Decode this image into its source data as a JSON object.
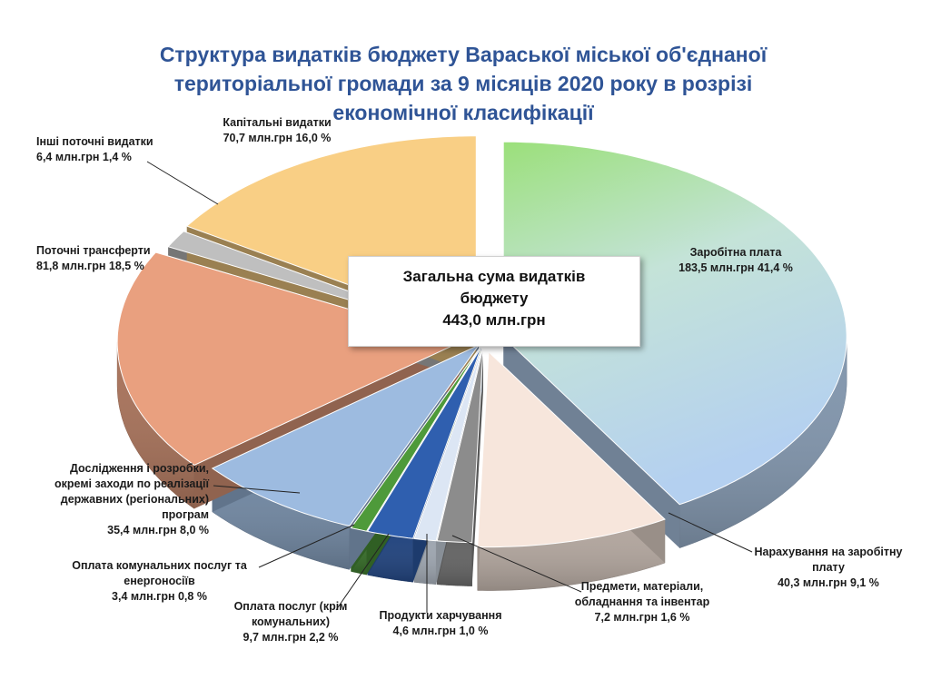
{
  "title": "Структура видатків бюджету Вараської міської об'єднаної територіальної громади за 9 місяців 2020 року в розрізі економічної класифікації",
  "center_box": {
    "line1": "Загальна сума видатків",
    "line2": "бюджету",
    "line3": "443,0 млн.грн"
  },
  "chart_data": {
    "type": "pie",
    "title": "Структура видатків бюджету Вараської міської об'єднаної територіальної громади за 9 місяців 2020 року в розрізі економічної класифікації",
    "total": 443.0,
    "total_label": "443,0 млн.грн",
    "unit": "млн.грн",
    "slices": [
      {
        "label": "Заробітна плата",
        "value": 183.5,
        "percent": 41.4,
        "value_text": "183,5 млн.грн  41,4 %",
        "color": "#B4D0F0",
        "color2": "#9BE07A"
      },
      {
        "label": "Нарахування на заробітну плату",
        "value": 40.3,
        "percent": 9.1,
        "value_text": "40,3 млн.грн   9,1 %",
        "color": "#F7E6DC"
      },
      {
        "label": "Предмети, матеріали, обладнання та інвентар",
        "value": 7.2,
        "percent": 1.6,
        "value_text": "7,2 млн.грн  1,6 %",
        "color": "#8C8C8C"
      },
      {
        "label": "Продукти харчування",
        "value": 4.6,
        "percent": 1.0,
        "value_text": "4,6 млн.грн 1,0 %",
        "color": "#DCE6F4"
      },
      {
        "label": "Оплата послуг (крім комунальних)",
        "value": 9.7,
        "percent": 2.2,
        "value_text": "9,7 млн.грн 2,2 %",
        "color": "#2F5FAF"
      },
      {
        "label": "Оплата комунальних послуг та енергоносіїв",
        "value": 3.4,
        "percent": 0.8,
        "value_text": "3,4 млн.грн 0,8 %",
        "color": "#4E9A3A"
      },
      {
        "label": "Дослідження і розробки, окремі заходи по реалізації державних (регіональних) програм",
        "value": 35.4,
        "percent": 8.0,
        "value_text": "35,4 млн.грн   8,0 %",
        "color": "#9DBBE0"
      },
      {
        "label": "Поточні трансферти",
        "value": 81.8,
        "percent": 18.5,
        "value_text": "81,8 млн.грн 18,5 %",
        "color": "#E9A07F"
      },
      {
        "label": "Інші поточні видатки",
        "value": 6.4,
        "percent": 1.4,
        "value_text": "6,4 млн.грн 1,4 %",
        "color": "#BFBFBF"
      },
      {
        "label": "Капітальні видатки",
        "value": 70.7,
        "percent": 16.0,
        "value_text": "70,7 млн.грн 16,0 %",
        "color": "#F9CF85"
      }
    ]
  },
  "labels": {
    "salary": {
      "name": "Заробітна плата",
      "value": "183,5 млн.грн  41,4 %"
    },
    "accruals": {
      "line1": "Нарахування на заробітну",
      "line2": "плату",
      "value": "40,3 млн.грн   9,1 %"
    },
    "materials": {
      "line1": "Предмети, матеріали,",
      "line2": "обладнання та інвентар",
      "value": "7,2 млн.грн  1,6 %"
    },
    "food": {
      "name": "Продукти харчування",
      "value": "4,6 млн.грн 1,0 %"
    },
    "services": {
      "line1": "Оплата послуг (крім",
      "line2": "комунальних)",
      "value": "9,7 млн.грн 2,2 %"
    },
    "utilities": {
      "line1": "Оплата комунальних послуг та",
      "line2": "енергоносіїв",
      "value": "3,4 млн.грн 0,8 %"
    },
    "research": {
      "line1": "Дослідження і розробки,",
      "line2": "окремі заходи по реалізації",
      "line3": "державних (регіональних)",
      "line4": "програм",
      "value": "35,4 млн.грн   8,0 %"
    },
    "transfers": {
      "name": "Поточні трансферти",
      "value": "81,8 млн.грн 18,5 %"
    },
    "other": {
      "name": "Інші поточні видатки",
      "value": "6,4 млн.грн 1,4 %"
    },
    "capital": {
      "name": "Капітальні видатки",
      "value": "70,7 млн.грн 16,0 %"
    }
  }
}
